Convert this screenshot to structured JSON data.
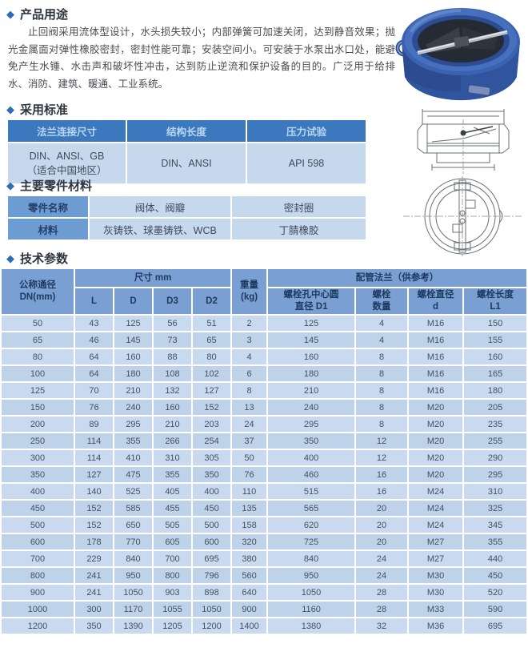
{
  "sections": {
    "usage": {
      "title": "产品用途",
      "body": "止回阀采用流体型设计，水头损失较小；内部弹簧可加速关闭，达到静音效果；抛光金属面对弹性橡胶密封，密封性能可靠；安装空间小。可安装于水泵出水口处，能避免产生水锤、水击声和破坏性冲击，达到防止逆流和保护设备的目的。广泛用于给排水、消防、建筑、暖通、工业系统。"
    },
    "standards": {
      "title": "采用标准",
      "headers": [
        "法兰连接尺寸",
        "结构长度",
        "压力试验"
      ],
      "row": [
        "DIN、ANSI、GB\n（适合中国地区）",
        "DIN、ANSI",
        "API 598"
      ]
    },
    "materials": {
      "title": "主要零件材料",
      "rows": [
        [
          "零件名称",
          "阀体、阀瓣",
          "密封圈"
        ],
        [
          "材料",
          "灰铸铁、球墨铸铁、WCB",
          "丁腈橡胶"
        ]
      ]
    },
    "tech": {
      "title": "技术参数",
      "header": {
        "dn": "公称通径\nDN(mm)",
        "size_group": "尺寸 mm",
        "size_cols": [
          "L",
          "D",
          "D3",
          "D2"
        ],
        "weight": "重量\n(kg)",
        "flange_group": "配管法兰（供参考）",
        "flange_cols": [
          "螺栓孔中心圆\n直径 D1",
          "螺栓\n数量",
          "螺栓直径\nd",
          "螺栓长度\nL1"
        ]
      },
      "rows": [
        [
          "50",
          "43",
          "125",
          "56",
          "51",
          "2",
          "125",
          "4",
          "M16",
          "150"
        ],
        [
          "65",
          "46",
          "145",
          "73",
          "65",
          "3",
          "145",
          "4",
          "M16",
          "155"
        ],
        [
          "80",
          "64",
          "160",
          "88",
          "80",
          "4",
          "160",
          "8",
          "M16",
          "160"
        ],
        [
          "100",
          "64",
          "180",
          "108",
          "102",
          "6",
          "180",
          "8",
          "M16",
          "165"
        ],
        [
          "125",
          "70",
          "210",
          "132",
          "127",
          "8",
          "210",
          "8",
          "M16",
          "180"
        ],
        [
          "150",
          "76",
          "240",
          "160",
          "152",
          "13",
          "240",
          "8",
          "M20",
          "205"
        ],
        [
          "200",
          "89",
          "295",
          "210",
          "203",
          "24",
          "295",
          "8",
          "M20",
          "235"
        ],
        [
          "250",
          "114",
          "355",
          "266",
          "254",
          "37",
          "350",
          "12",
          "M20",
          "255"
        ],
        [
          "300",
          "114",
          "410",
          "310",
          "305",
          "50",
          "400",
          "12",
          "M20",
          "290"
        ],
        [
          "350",
          "127",
          "475",
          "355",
          "350",
          "76",
          "460",
          "16",
          "M20",
          "295"
        ],
        [
          "400",
          "140",
          "525",
          "405",
          "400",
          "110",
          "515",
          "16",
          "M24",
          "310"
        ],
        [
          "450",
          "152",
          "585",
          "455",
          "450",
          "135",
          "565",
          "20",
          "M24",
          "325"
        ],
        [
          "500",
          "152",
          "650",
          "505",
          "500",
          "158",
          "620",
          "20",
          "M24",
          "345"
        ],
        [
          "600",
          "178",
          "770",
          "605",
          "600",
          "320",
          "725",
          "20",
          "M27",
          "355"
        ],
        [
          "700",
          "229",
          "840",
          "700",
          "695",
          "380",
          "840",
          "24",
          "M27",
          "440"
        ],
        [
          "800",
          "241",
          "950",
          "800",
          "796",
          "560",
          "950",
          "24",
          "M30",
          "450"
        ],
        [
          "900",
          "241",
          "1050",
          "903",
          "898",
          "640",
          "1050",
          "28",
          "M30",
          "520"
        ],
        [
          "1000",
          "300",
          "1170",
          "1055",
          "1050",
          "900",
          "1160",
          "28",
          "M33",
          "590"
        ],
        [
          "1200",
          "350",
          "1390",
          "1205",
          "1200",
          "1400",
          "1380",
          "32",
          "M36",
          "695"
        ]
      ]
    }
  },
  "figures": {
    "photo": "dual-plate-wafer-check-valve-photo",
    "section_drawing": "valve-cross-section-drawing",
    "front_drawing": "valve-front-view-drawing"
  },
  "colors": {
    "accent_blue": "#2e6db8",
    "table_header_dark": "#3c78bd",
    "table_header_mid": "#6d9cd3",
    "tech_header": "#7aa0d3",
    "cell_light": "#c5d8ee",
    "valve_body_blue": "#3a5fad"
  }
}
